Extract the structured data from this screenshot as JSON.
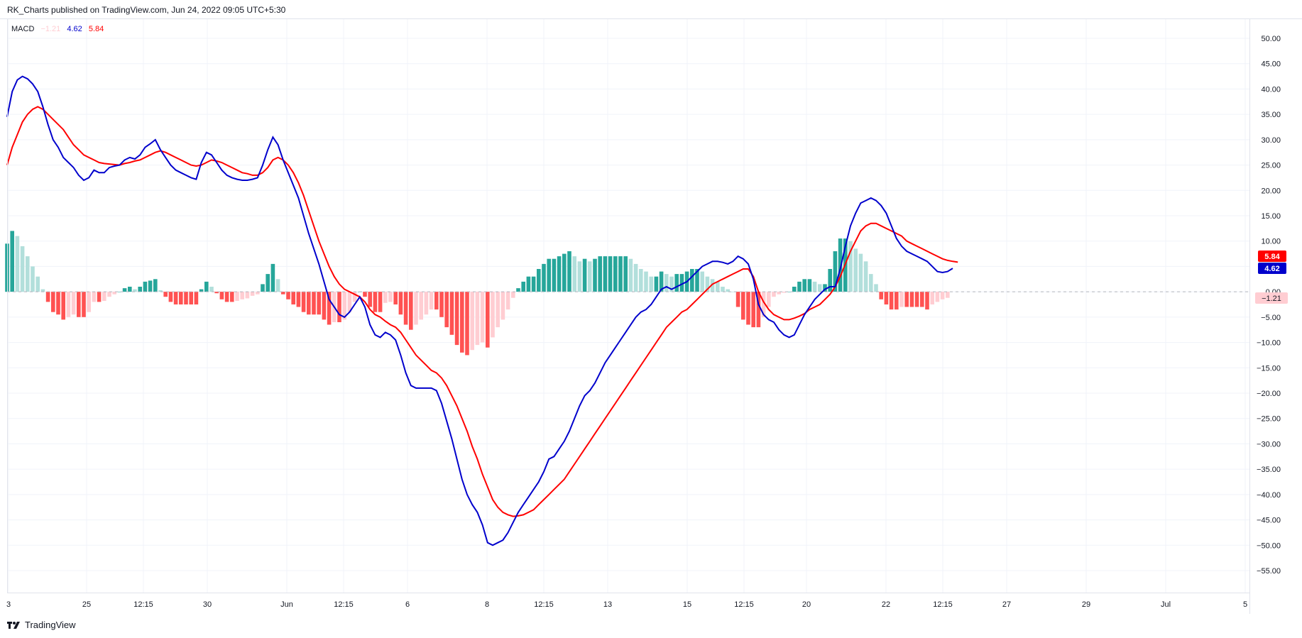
{
  "header": {
    "published_by": "RK_Charts published on TradingView.com, Jun 24, 2022 09:05 UTC+5:30"
  },
  "legend": {
    "name": "MACD",
    "histogram": "−1.21",
    "macd": "4.62",
    "signal": "5.84"
  },
  "badges": {
    "signal": "5.84",
    "macd": "4.62",
    "histogram": "−1.21"
  },
  "footer": {
    "brand": "TradingView"
  },
  "colors": {
    "macd_line": "#0000cc",
    "signal_line": "#ff0000",
    "hist_pos_strong": "#26a69a",
    "hist_pos_weak": "#b2dfdb",
    "hist_neg_strong": "#ff5252",
    "hist_neg_weak": "#ffcdd2",
    "grid": "#f0f3fa",
    "axis_text": "#131722"
  },
  "chart_data": {
    "type": "line",
    "y_axis": {
      "min": -55,
      "max": 50,
      "tick_labels": [
        "50.00",
        "45.00",
        "40.00",
        "35.00",
        "30.00",
        "25.00",
        "20.00",
        "15.00",
        "10.00",
        "5.00",
        "0.00",
        "−5.00",
        "−10.00",
        "−15.00",
        "−20.00",
        "−25.00",
        "−30.00",
        "−35.00",
        "−40.00",
        "−45.00",
        "−50.00",
        "−55.00"
      ]
    },
    "x_axis": {
      "tick_labels": [
        "3",
        "25",
        "12:15",
        "30",
        "Jun",
        "12:15",
        "6",
        "8",
        "12:15",
        "13",
        "15",
        "12:15",
        "20",
        "22",
        "12:15",
        "27",
        "29",
        "Jul",
        "5"
      ]
    },
    "grid": true,
    "series": [
      {
        "name": "MACD",
        "values": [
          34.5,
          39.5,
          41.8,
          42.5,
          42.0,
          41.0,
          39.5,
          36.5,
          33.0,
          30.0,
          28.5,
          26.5,
          25.5,
          24.5,
          23.0,
          22.0,
          22.5,
          24.0,
          23.5,
          23.5,
          24.5,
          24.8,
          25.0,
          26.0,
          26.5,
          26.2,
          27.0,
          28.5,
          29.2,
          30.0,
          28.0,
          26.5,
          25.0,
          24.0,
          23.5,
          23.0,
          22.5,
          22.2,
          25.5,
          27.5,
          27.0,
          25.5,
          24.0,
          23.0,
          22.5,
          22.2,
          22.0,
          22.0,
          22.2,
          22.5,
          25.0,
          28.0,
          30.5,
          29.0,
          26.0,
          23.5,
          21.0,
          18.5,
          15.0,
          11.5,
          8.5,
          5.5,
          2.0,
          -1.5,
          -3.0,
          -4.5,
          -5.0,
          -4.0,
          -2.5,
          -1.0,
          -3.0,
          -6.5,
          -8.5,
          -9.0,
          -8.0,
          -8.5,
          -9.5,
          -12.5,
          -16.0,
          -18.5,
          -19.0,
          -19.0,
          -19.0,
          -19.0,
          -19.5,
          -22.0,
          -25.5,
          -29.0,
          -33.0,
          -37.0,
          -40.0,
          -42.0,
          -43.5,
          -46.0,
          -49.5,
          -50.0,
          -49.5,
          -49.0,
          -47.5,
          -45.5,
          -43.5,
          -42.0,
          -40.5,
          -39.0,
          -37.5,
          -35.5,
          -33.0,
          -32.5,
          -31.0,
          -29.5,
          -27.5,
          -25.0,
          -22.5,
          -20.5,
          -19.5,
          -18.0,
          -16.0,
          -14.0,
          -12.5,
          -11.0,
          -9.5,
          -8.0,
          -6.5,
          -5.0,
          -4.0,
          -3.5,
          -2.5,
          -1.0,
          0.5,
          1.0,
          0.5,
          1.0,
          1.5,
          2.0,
          3.0,
          4.0,
          5.0,
          5.5,
          6.0,
          6.0,
          5.8,
          5.5,
          6.0,
          7.0,
          6.5,
          5.5,
          2.5,
          -2.5,
          -4.5,
          -5.5,
          -6.0,
          -7.5,
          -8.5,
          -9.0,
          -8.5,
          -6.5,
          -4.5,
          -3.0,
          -1.5,
          -0.5,
          0.5,
          1.0,
          1.0,
          4.5,
          9.0,
          13.0,
          15.5,
          17.5,
          18.0,
          18.5,
          18.0,
          17.0,
          15.5,
          13.0,
          10.5,
          9.0,
          8.0,
          7.5,
          7.0,
          6.5,
          6.0,
          5.0,
          4.0,
          3.8,
          4.0,
          4.62
        ]
      },
      {
        "name": "Signal",
        "values": [
          25.0,
          28.5,
          31.0,
          33.5,
          35.0,
          36.0,
          36.5,
          36.0,
          35.0,
          34.0,
          33.0,
          32.0,
          30.5,
          29.0,
          28.0,
          27.0,
          26.5,
          26.0,
          25.5,
          25.3,
          25.2,
          25.1,
          25.0,
          25.3,
          25.5,
          25.8,
          26.0,
          26.5,
          27.0,
          27.5,
          27.8,
          27.5,
          27.0,
          26.5,
          26.0,
          25.5,
          25.0,
          24.8,
          25.0,
          25.5,
          26.0,
          25.8,
          25.5,
          25.0,
          24.5,
          24.0,
          23.5,
          23.3,
          23.0,
          23.0,
          23.5,
          24.5,
          26.0,
          26.5,
          26.0,
          25.0,
          23.5,
          21.5,
          19.0,
          16.0,
          13.0,
          10.0,
          7.5,
          5.0,
          3.0,
          1.5,
          0.5,
          0.0,
          -0.5,
          -1.0,
          -2.0,
          -3.5,
          -4.5,
          -5.0,
          -5.8,
          -6.5,
          -7.0,
          -8.0,
          -9.5,
          -11.0,
          -12.5,
          -13.5,
          -14.5,
          -15.5,
          -16.0,
          -17.0,
          -18.5,
          -20.5,
          -22.5,
          -25.0,
          -27.5,
          -30.5,
          -33.0,
          -36.0,
          -38.5,
          -41.0,
          -42.5,
          -43.5,
          -44.0,
          -44.3,
          -44.2,
          -44.0,
          -43.5,
          -43.0,
          -42.0,
          -41.0,
          -40.0,
          -39.0,
          -38.0,
          -37.0,
          -35.5,
          -34.0,
          -32.5,
          -31.0,
          -29.5,
          -28.0,
          -26.5,
          -25.0,
          -23.5,
          -22.0,
          -20.5,
          -19.0,
          -17.5,
          -16.0,
          -14.5,
          -13.0,
          -11.5,
          -10.0,
          -8.5,
          -7.0,
          -6.0,
          -5.0,
          -4.0,
          -3.5,
          -2.5,
          -1.5,
          -0.5,
          0.5,
          1.5,
          2.0,
          2.5,
          3.0,
          3.5,
          4.0,
          4.5,
          4.5,
          3.0,
          0.0,
          -2.0,
          -3.5,
          -4.5,
          -5.0,
          -5.5,
          -5.5,
          -5.2,
          -4.8,
          -4.3,
          -3.5,
          -3.0,
          -2.5,
          -1.5,
          -0.5,
          1.0,
          3.0,
          5.5,
          8.0,
          10.0,
          12.0,
          13.0,
          13.5,
          13.5,
          13.0,
          12.5,
          12.0,
          11.5,
          11.0,
          10.0,
          9.5,
          9.0,
          8.5,
          8.0,
          7.5,
          7.0,
          6.5,
          6.2,
          6.0,
          5.84
        ]
      },
      {
        "name": "Histogram",
        "values": [
          9.5,
          12.0,
          11.0,
          9.0,
          7.0,
          5.0,
          3.0,
          0.5,
          -2.0,
          -4.0,
          -4.5,
          -5.5,
          -5.0,
          -4.5,
          -5.0,
          -5.0,
          -4.0,
          -2.0,
          -2.0,
          -1.8,
          -1.0,
          -0.5,
          0.0,
          0.7,
          1.0,
          0.5,
          1.0,
          2.0,
          2.2,
          2.5,
          0.3,
          -1.0,
          -2.0,
          -2.5,
          -2.5,
          -2.5,
          -2.5,
          -2.5,
          0.5,
          2.0,
          1.0,
          -0.3,
          -1.5,
          -2.0,
          -2.0,
          -1.8,
          -1.5,
          -1.3,
          -0.8,
          -0.5,
          1.5,
          3.5,
          5.5,
          2.5,
          -0.5,
          -1.5,
          -2.5,
          -3.0,
          -4.0,
          -4.5,
          -4.5,
          -4.5,
          -5.5,
          -6.5,
          -6.0,
          -6.0,
          -5.5,
          -4.0,
          -2.0,
          0.0,
          -1.0,
          -3.0,
          -4.0,
          -4.0,
          -2.2,
          -2.0,
          -2.5,
          -4.5,
          -6.5,
          -7.5,
          -6.5,
          -5.5,
          -4.5,
          -3.5,
          -3.5,
          -5.0,
          -7.0,
          -8.5,
          -10.5,
          -12.0,
          -12.5,
          -11.5,
          -10.5,
          -10.0,
          -11.0,
          -9.0,
          -7.0,
          -5.5,
          -3.5,
          -1.2,
          0.7,
          2.0,
          3.0,
          3.0,
          4.5,
          5.5,
          6.5,
          6.5,
          7.0,
          7.5,
          8.0,
          7.0,
          6.0,
          6.5,
          6.0,
          6.5,
          7.0,
          7.0,
          7.0,
          7.0,
          7.0,
          7.0,
          6.5,
          5.5,
          4.5,
          4.0,
          3.0,
          3.0,
          4.0,
          3.5,
          3.0,
          3.5,
          3.5,
          4.0,
          4.5,
          4.5,
          4.0,
          3.0,
          2.5,
          2.0,
          1.0,
          0.5,
          0.0,
          -3.0,
          -5.5,
          -6.5,
          -7.0,
          -7.0,
          -5.0,
          -3.0,
          -1.0,
          -0.5,
          -0.2,
          0.0,
          1.0,
          2.0,
          2.5,
          2.5,
          2.0,
          1.5,
          1.5,
          4.5,
          8.0,
          10.5,
          10.5,
          10.0,
          8.5,
          7.5,
          6.0,
          3.5,
          1.5,
          -1.5,
          -2.5,
          -3.5,
          -3.5,
          -3.0,
          -3.0,
          -3.0,
          -3.0,
          -3.0,
          -3.5,
          -2.5,
          -2.0,
          -1.5,
          -1.21
        ]
      }
    ]
  }
}
